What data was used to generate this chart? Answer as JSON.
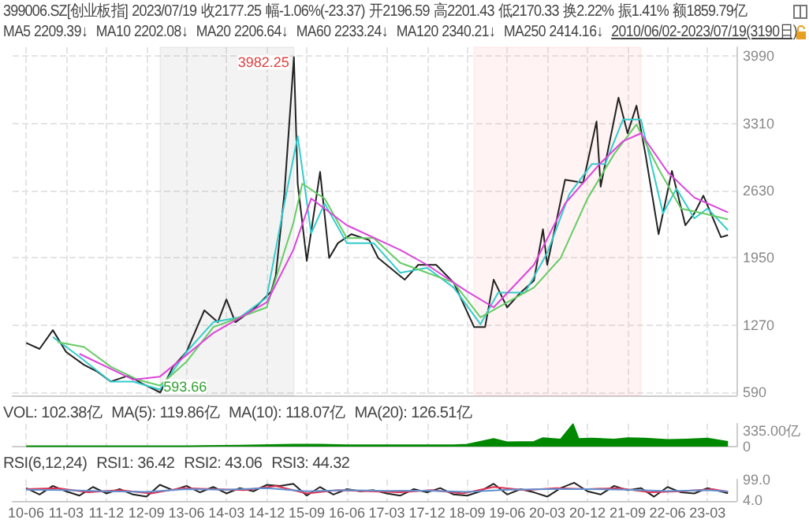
{
  "chart_data": [
    {
      "type": "line",
      "annotations": [
        "399006.SZ[创业板指]",
        "2023/07/19",
        "收2177.25",
        "幅-1.06%(-23.37)",
        "开2196.59",
        "高2201.43",
        "低2170.33",
        "换2.22%",
        "振1.41%",
        "额1859.79亿",
        "MA5 2209.39↓",
        "MA10 2202.08↓",
        "MA20 2206.64↓",
        "MA60 2233.24↓",
        "MA120 2340.21↓",
        "MA250 2414.16↓",
        "2010/06/02-2023/07/19(3190日)",
        {
          "text": "3982.25",
          "x": "2015-06-05",
          "y": 3982.25
        },
        {
          "text": "593.66",
          "x": "2012-12-04",
          "y": 593.66
        }
      ],
      "xlim": [
        "2010-03-01",
        "2023-09-15"
      ],
      "ylim": [
        560,
        4080
      ],
      "yticks": [
        590,
        1270,
        1950,
        2630,
        3310,
        3990
      ],
      "xticks": [
        {
          "value": "2010-06",
          "label": null
        },
        {
          "value": "2011-03",
          "label": null
        },
        {
          "value": "2011-12",
          "label": null
        },
        {
          "value": "2012-09",
          "label": null
        },
        {
          "value": "2013-06",
          "label": null
        },
        {
          "value": "2014-03",
          "label": null
        },
        {
          "value": "2014-12",
          "label": null
        },
        {
          "value": "2015-09",
          "label": null
        },
        {
          "value": "2016-06",
          "label": null
        },
        {
          "value": "2017-03",
          "label": null
        },
        {
          "value": "2017-12",
          "label": null
        },
        {
          "value": "2018-09",
          "label": null
        },
        {
          "value": "2019-06",
          "label": null
        },
        {
          "value": "2020-03",
          "label": null
        },
        {
          "value": "2020-12",
          "label": null
        },
        {
          "value": "2021-09",
          "label": null
        },
        {
          "value": "2022-06",
          "label": null
        },
        {
          "value": "2023-03",
          "label": null
        }
      ],
      "tick_labels": "y",
      "grid": true,
      "marker": "none",
      "line_style": "solid",
      "bands": [
        {
          "axis": "x",
          "from": "2012-12-04",
          "to": "2015-06-05",
          "color": "#999999"
        },
        {
          "axis": "x",
          "from": "2018-10-19",
          "to": "2021-11-30",
          "color": "#ff9999"
        }
      ],
      "series": [
        {
          "color": "#222222",
          "x": [
            "2010-06-02",
            "2010-09",
            "2010-12",
            "2011-03",
            "2011-07",
            "2011-10",
            "2012-01",
            "2012-05",
            "2012-08",
            "2012-12-04",
            "2013-03",
            "2013-06",
            "2013-10",
            "2014-01",
            "2014-03",
            "2014-05",
            "2014-09",
            "2015-01",
            "2015-02",
            "2015-04",
            "2015-06-05",
            "2015-07",
            "2015-09",
            "2015-12",
            "2016-02",
            "2016-04",
            "2016-07",
            "2016-11",
            "2017-01",
            "2017-07",
            "2017-10",
            "2018-02",
            "2018-06",
            "2018-10-19",
            "2019-01",
            "2019-03",
            "2019-06",
            "2019-09",
            "2019-12",
            "2020-02",
            "2020-03",
            "2020-07",
            "2020-11",
            "2021-02",
            "2021-03",
            "2021-07",
            "2021-09",
            "2021-11",
            "2022-01",
            "2022-04",
            "2022-07",
            "2022-10",
            "2022-12",
            "2023-02",
            "2023-06",
            "2023-07-19"
          ],
          "values": [
            1090,
            1030,
            1220,
            1000,
            870,
            800,
            700,
            760,
            680,
            590,
            850,
            1000,
            1420,
            1300,
            1530,
            1300,
            1430,
            1610,
            1770,
            2600,
            3980,
            2700,
            1920,
            2820,
            1950,
            2100,
            2190,
            2130,
            1950,
            1730,
            1880,
            1880,
            1700,
            1250,
            1250,
            1730,
            1450,
            1600,
            1720,
            2240,
            1880,
            2740,
            2710,
            3330,
            2670,
            3570,
            3210,
            3490,
            3000,
            2190,
            2830,
            2280,
            2400,
            2580,
            2160,
            2180
          ]
        },
        {
          "color": "#33cccc",
          "x": [
            "2010-12",
            "2011-06",
            "2012-01",
            "2012-06",
            "2012-12",
            "2013-06",
            "2013-12",
            "2014-06",
            "2014-12",
            "2015-04",
            "2015-07",
            "2015-10",
            "2016-01",
            "2016-06",
            "2016-12",
            "2017-06",
            "2017-12",
            "2018-06",
            "2018-12",
            "2019-04",
            "2019-10",
            "2020-03",
            "2020-08",
            "2021-01",
            "2021-04",
            "2021-08",
            "2021-12",
            "2022-05",
            "2022-08",
            "2022-12",
            "2023-03",
            "2023-07-19"
          ],
          "values": [
            1150,
            950,
            700,
            700,
            620,
            1000,
            1300,
            1350,
            1550,
            2500,
            3180,
            2200,
            2500,
            2100,
            2100,
            1800,
            1850,
            1650,
            1280,
            1600,
            1600,
            2000,
            2600,
            2900,
            2900,
            3350,
            3350,
            2400,
            2650,
            2350,
            2450,
            2230
          ]
        },
        {
          "color": "#66cc66",
          "x": [
            "2011-01",
            "2011-07",
            "2012-01",
            "2012-07",
            "2012-12",
            "2013-06",
            "2013-12",
            "2014-06",
            "2014-12",
            "2015-06",
            "2015-08",
            "2016-01",
            "2016-06",
            "2016-12",
            "2017-06",
            "2017-12",
            "2018-06",
            "2018-12",
            "2019-06",
            "2019-12",
            "2020-06",
            "2020-12",
            "2021-06",
            "2021-11",
            "2022-04",
            "2022-09",
            "2023-02",
            "2023-07-19"
          ],
          "values": [
            1100,
            1050,
            850,
            720,
            660,
            900,
            1250,
            1350,
            1450,
            2300,
            2700,
            2550,
            2150,
            2150,
            1900,
            1800,
            1700,
            1350,
            1500,
            1650,
            1950,
            2550,
            3000,
            3300,
            2850,
            2450,
            2400,
            2340
          ]
        },
        {
          "color": "#dd44dd",
          "x": [
            "2011-06",
            "2012-06",
            "2012-12",
            "2013-12",
            "2014-12",
            "2015-06",
            "2015-10",
            "2016-06",
            "2017-06",
            "2017-12",
            "2018-09",
            "2019-03",
            "2019-12",
            "2020-07",
            "2021-03",
            "2021-08",
            "2021-12",
            "2022-06",
            "2022-12",
            "2023-07-19"
          ],
          "values": [
            980,
            720,
            750,
            1190,
            1500,
            2030,
            2550,
            2280,
            2030,
            1880,
            1610,
            1450,
            1880,
            2500,
            2910,
            3130,
            3210,
            2820,
            2560,
            2410
          ]
        }
      ]
    },
    {
      "type": "area",
      "annotations": [
        "VOL: 102.38亿",
        "MA(5): 119.86亿",
        "MA(10): 118.07亿",
        "MA(20): 126.51亿"
      ],
      "xlim": [
        "2010-03-01",
        "2023-09-15"
      ],
      "ylim": [
        0,
        480
      ],
      "yticks": [
        0,
        {
          "value": 335,
          "label": "335.00亿"
        }
      ],
      "xticks": [
        {
          "value": "2010-06",
          "label": null
        },
        {
          "value": "2011-03",
          "label": null
        },
        {
          "value": "2011-12",
          "label": null
        },
        {
          "value": "2012-09",
          "label": null
        },
        {
          "value": "2013-06",
          "label": null
        },
        {
          "value": "2014-03",
          "label": null
        },
        {
          "value": "2014-12",
          "label": null
        },
        {
          "value": "2015-09",
          "label": null
        },
        {
          "value": "2016-06",
          "label": null
        },
        {
          "value": "2017-03",
          "label": null
        },
        {
          "value": "2017-12",
          "label": null
        },
        {
          "value": "2018-09",
          "label": null
        },
        {
          "value": "2019-06",
          "label": null
        },
        {
          "value": "2020-03",
          "label": null
        },
        {
          "value": "2020-12",
          "label": null
        },
        {
          "value": "2021-09",
          "label": null
        },
        {
          "value": "2022-06",
          "label": null
        },
        {
          "value": "2023-03",
          "label": null
        }
      ],
      "tick_labels": "y",
      "grid": "x",
      "series": [
        {
          "color": "#008800",
          "x": [
            "2010-06-02",
            "2011-06",
            "2012-06",
            "2012-12",
            "2013-06",
            "2014-06",
            "2015-06",
            "2015-12",
            "2016-06",
            "2017-06",
            "2018-06",
            "2018-09",
            "2019-03",
            "2019-06",
            "2019-12",
            "2020-02",
            "2020-06",
            "2020-08-24",
            "2020-10",
            "2021-01",
            "2021-06",
            "2021-09",
            "2022-01",
            "2022-06",
            "2022-10",
            "2023-03",
            "2023-07-19"
          ],
          "values": [
            10,
            10,
            10,
            10,
            10,
            20,
            40,
            40,
            30,
            30,
            30,
            40,
            160,
            90,
            100,
            180,
            150,
            470,
            160,
            170,
            150,
            180,
            170,
            140,
            150,
            170,
            100
          ]
        }
      ]
    },
    {
      "type": "line",
      "annotations": [
        "RSI(6,12,24)",
        "RSI1: 36.42",
        "RSI2: 43.06",
        "RSI3: 44.32"
      ],
      "xlim": [
        "2010-03-01",
        "2023-09-15"
      ],
      "ylim": [
        0,
        100
      ],
      "yticks": [
        {
          "value": 4,
          "label": "4.0"
        },
        {
          "value": 99,
          "label": "99.0"
        }
      ],
      "xticks": [
        {
          "value": "2010-06",
          "label": "10-06"
        },
        {
          "value": "2011-03",
          "label": "11-03"
        },
        {
          "value": "2011-12",
          "label": "11-12"
        },
        {
          "value": "2012-09",
          "label": "12-09"
        },
        {
          "value": "2013-06",
          "label": "13-06"
        },
        {
          "value": "2014-03",
          "label": "14-03"
        },
        {
          "value": "2014-12",
          "label": "14-12"
        },
        {
          "value": "2015-09",
          "label": "15-09"
        },
        {
          "value": "2016-06",
          "label": "16-06"
        },
        {
          "value": "2017-03",
          "label": "17-03"
        },
        {
          "value": "2017-12",
          "label": "17-12"
        },
        {
          "value": "2018-09",
          "label": "18-09"
        },
        {
          "value": "2019-06",
          "label": "19-06"
        },
        {
          "value": "2020-03",
          "label": "20-03"
        },
        {
          "value": "2020-12",
          "label": "20-12"
        },
        {
          "value": "2021-09",
          "label": "21-09"
        },
        {
          "value": "2022-06",
          "label": "22-06"
        },
        {
          "value": "2023-03",
          "label": "23-03"
        }
      ],
      "grid": "x",
      "marker": "none",
      "line_style": "solid",
      "series": [
        {
          "color": "#222222",
          "x": [
            "2010-06",
            "2010-09",
            "2010-12",
            "2011-03",
            "2011-06",
            "2011-09",
            "2011-12",
            "2012-03",
            "2012-06",
            "2012-09",
            "2012-12",
            "2013-03",
            "2013-06",
            "2013-09",
            "2013-12",
            "2014-03",
            "2014-06",
            "2014-09",
            "2014-12",
            "2015-03",
            "2015-06",
            "2015-09",
            "2015-12",
            "2016-03",
            "2016-06",
            "2016-09",
            "2016-12",
            "2017-03",
            "2017-06",
            "2017-09",
            "2017-12",
            "2018-03",
            "2018-06",
            "2018-09",
            "2018-12",
            "2019-03",
            "2019-06",
            "2019-09",
            "2019-12",
            "2020-03",
            "2020-06",
            "2020-09",
            "2020-12",
            "2021-03",
            "2021-06",
            "2021-09",
            "2021-12",
            "2022-03",
            "2022-06",
            "2022-09",
            "2022-12",
            "2023-03",
            "2023-07-19"
          ],
          "values": [
            60,
            30,
            70,
            45,
            25,
            65,
            35,
            55,
            30,
            20,
            75,
            50,
            70,
            40,
            65,
            35,
            60,
            45,
            75,
            70,
            80,
            25,
            65,
            30,
            55,
            45,
            50,
            35,
            25,
            55,
            40,
            60,
            30,
            25,
            45,
            80,
            30,
            55,
            40,
            20,
            60,
            85,
            45,
            30,
            70,
            50,
            60,
            20,
            65,
            40,
            35,
            60,
            36
          ]
        },
        {
          "color": "#e03050",
          "x": [
            "2010-06",
            "2011-01",
            "2011-08",
            "2012-03",
            "2012-10",
            "2013-05",
            "2013-12",
            "2014-07",
            "2015-02",
            "2015-09",
            "2016-04",
            "2016-11",
            "2017-06",
            "2018-01",
            "2018-08",
            "2019-03",
            "2019-10",
            "2020-05",
            "2020-12",
            "2021-07",
            "2022-02",
            "2022-09",
            "2023-04",
            "2023-07-19"
          ],
          "values": [
            55,
            60,
            40,
            50,
            35,
            60,
            55,
            50,
            70,
            35,
            50,
            45,
            40,
            50,
            35,
            65,
            50,
            60,
            55,
            60,
            40,
            45,
            55,
            43
          ]
        },
        {
          "color": "#6090d0",
          "x": [
            "2010-06",
            "2011-03",
            "2011-12",
            "2012-09",
            "2013-06",
            "2014-03",
            "2014-12",
            "2015-09",
            "2016-06",
            "2017-03",
            "2017-12",
            "2018-09",
            "2019-06",
            "2020-03",
            "2020-12",
            "2021-09",
            "2022-06",
            "2023-03",
            "2023-07-19"
          ],
          "values": [
            52,
            50,
            45,
            42,
            55,
            52,
            60,
            45,
            50,
            47,
            48,
            42,
            52,
            55,
            55,
            52,
            46,
            50,
            44
          ]
        }
      ]
    }
  ]
}
